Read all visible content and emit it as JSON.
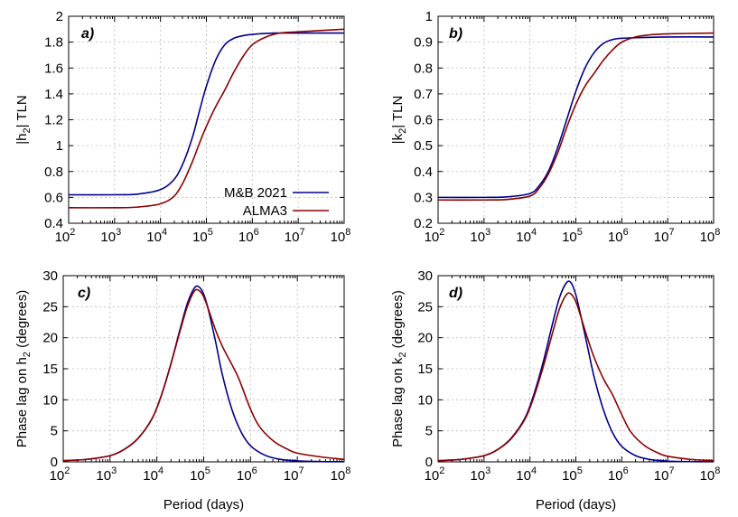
{
  "colors": {
    "mb2021": "#00008b",
    "alma3": "#8b0000"
  },
  "legend": {
    "mb2021": "M&B 2021",
    "alma3": "ALMA3"
  },
  "xlabel": "Period (days)",
  "chart_data": [
    {
      "type": "line",
      "panel": "a)",
      "ylabel_prefix": "|h",
      "ylabel_sub": "2",
      "ylabel_suffix": "| TLN",
      "xlim": [
        100,
        100000000
      ],
      "xscale": "log",
      "ylim": [
        0.4,
        2
      ],
      "xticks": [
        "2",
        "3",
        "4",
        "5",
        "6",
        "7",
        "8"
      ],
      "yticks": [
        "0.4",
        "0.6",
        "0.8",
        "1",
        "1.2",
        "1.4",
        "1.6",
        "1.8",
        "2"
      ],
      "series": [
        {
          "name": "M&B 2021",
          "log10_period": [
            2,
            3,
            3.5,
            4,
            4.3,
            4.5,
            4.7,
            4.85,
            5,
            5.2,
            5.4,
            5.6,
            5.8,
            6,
            6.5,
            7,
            8
          ],
          "values": [
            0.62,
            0.62,
            0.625,
            0.66,
            0.74,
            0.87,
            1.07,
            1.27,
            1.46,
            1.66,
            1.78,
            1.83,
            1.85,
            1.86,
            1.87,
            1.87,
            1.87
          ]
        },
        {
          "name": "ALMA3",
          "log10_period": [
            2,
            3,
            3.5,
            4,
            4.3,
            4.5,
            4.7,
            4.85,
            5,
            5.2,
            5.4,
            5.6,
            5.8,
            6,
            6.3,
            6.6,
            7,
            8
          ],
          "values": [
            0.52,
            0.52,
            0.525,
            0.55,
            0.61,
            0.72,
            0.88,
            1.02,
            1.15,
            1.3,
            1.43,
            1.57,
            1.69,
            1.78,
            1.84,
            1.87,
            1.88,
            1.9
          ]
        }
      ]
    },
    {
      "type": "line",
      "panel": "b)",
      "ylabel_prefix": "|k",
      "ylabel_sub": "2",
      "ylabel_suffix": "| TLN",
      "xlim": [
        100,
        100000000
      ],
      "xscale": "log",
      "ylim": [
        0.2,
        1
      ],
      "xticks": [
        "2",
        "3",
        "4",
        "5",
        "6",
        "7",
        "8"
      ],
      "yticks": [
        "0.2",
        "0.3",
        "0.4",
        "0.5",
        "0.6",
        "0.7",
        "0.8",
        "0.9",
        "1"
      ],
      "series": [
        {
          "name": "M&B 2021",
          "log10_period": [
            2,
            3,
            3.5,
            4,
            4.2,
            4.4,
            4.6,
            4.8,
            5,
            5.2,
            5.4,
            5.6,
            5.8,
            6,
            6.5,
            7,
            8
          ],
          "values": [
            0.3,
            0.3,
            0.302,
            0.315,
            0.345,
            0.4,
            0.49,
            0.6,
            0.71,
            0.8,
            0.86,
            0.895,
            0.91,
            0.915,
            0.918,
            0.92,
            0.92
          ]
        },
        {
          "name": "ALMA3",
          "log10_period": [
            2,
            3,
            3.5,
            4,
            4.2,
            4.4,
            4.6,
            4.8,
            5,
            5.2,
            5.4,
            5.6,
            5.8,
            6,
            6.3,
            6.6,
            7,
            8
          ],
          "values": [
            0.29,
            0.29,
            0.292,
            0.305,
            0.335,
            0.39,
            0.47,
            0.57,
            0.66,
            0.73,
            0.78,
            0.83,
            0.87,
            0.9,
            0.92,
            0.928,
            0.932,
            0.935
          ]
        }
      ]
    },
    {
      "type": "line",
      "panel": "c)",
      "ylabel_prefix": "Phase lag on h",
      "ylabel_sub": "2",
      "ylabel_suffix": " (degrees)",
      "xlim": [
        100,
        100000000
      ],
      "xscale": "log",
      "ylim": [
        0,
        30
      ],
      "xticks": [
        "2",
        "3",
        "4",
        "5",
        "6",
        "7",
        "8"
      ],
      "yticks": [
        "0",
        "5",
        "10",
        "15",
        "20",
        "25",
        "30"
      ],
      "series": [
        {
          "name": "M&B 2021",
          "log10_period": [
            2,
            2.5,
            3,
            3.3,
            3.6,
            3.9,
            4.1,
            4.3,
            4.5,
            4.65,
            4.8,
            4.9,
            5,
            5.1,
            5.25,
            5.4,
            5.6,
            5.8,
            6,
            6.3,
            6.6,
            7,
            7.5,
            8
          ],
          "values": [
            0.2,
            0.4,
            1.0,
            2.0,
            3.8,
            7.0,
            10.8,
            15.8,
            21.5,
            25.5,
            28.0,
            28.2,
            27.0,
            24.5,
            19.5,
            14.0,
            8.5,
            4.8,
            2.6,
            1.1,
            0.45,
            0.15,
            0.05,
            0.02
          ]
        },
        {
          "name": "ALMA3",
          "log10_period": [
            2,
            2.5,
            3,
            3.3,
            3.6,
            3.9,
            4.1,
            4.3,
            4.5,
            4.65,
            4.8,
            4.9,
            5,
            5.1,
            5.25,
            5.4,
            5.6,
            5.75,
            6,
            6.2,
            6.5,
            6.8,
            7,
            7.5,
            8
          ],
          "values": [
            0.2,
            0.4,
            1.0,
            2.0,
            3.8,
            7.0,
            10.8,
            15.8,
            21.2,
            25.0,
            27.5,
            27.6,
            26.6,
            24.6,
            21.3,
            18.6,
            15.7,
            13.4,
            8.5,
            5.6,
            3.3,
            2.0,
            1.4,
            0.8,
            0.4
          ]
        }
      ]
    },
    {
      "type": "line",
      "panel": "d)",
      "ylabel_prefix": "Phase lag on k",
      "ylabel_sub": "2",
      "ylabel_suffix": " (degrees)",
      "xlim": [
        100,
        100000000
      ],
      "xscale": "log",
      "ylim": [
        0,
        30
      ],
      "xticks": [
        "2",
        "3",
        "4",
        "5",
        "6",
        "7",
        "8"
      ],
      "yticks": [
        "0",
        "5",
        "10",
        "15",
        "20",
        "25",
        "30"
      ],
      "series": [
        {
          "name": "M&B 2021",
          "log10_period": [
            2,
            2.5,
            3,
            3.3,
            3.6,
            3.9,
            4.1,
            4.3,
            4.5,
            4.65,
            4.8,
            4.9,
            5,
            5.1,
            5.25,
            5.4,
            5.6,
            5.8,
            6,
            6.3,
            6.6,
            7,
            7.5,
            8
          ],
          "values": [
            0.2,
            0.4,
            1.0,
            2.0,
            3.9,
            7.2,
            11.2,
            16.4,
            22.5,
            26.6,
            28.9,
            28.8,
            26.9,
            23.8,
            18.7,
            13.6,
            8.4,
            4.7,
            2.5,
            1.0,
            0.4,
            0.12,
            0.04,
            0.02
          ]
        },
        {
          "name": "ALMA3",
          "log10_period": [
            2,
            2.5,
            3,
            3.3,
            3.6,
            3.9,
            4.1,
            4.3,
            4.5,
            4.65,
            4.8,
            4.9,
            5,
            5.1,
            5.25,
            5.4,
            5.6,
            5.8,
            6,
            6.2,
            6.5,
            6.8,
            7,
            7.5,
            8
          ],
          "values": [
            0.2,
            0.4,
            1.0,
            2.0,
            3.8,
            7.0,
            10.8,
            15.6,
            21.0,
            24.8,
            27.0,
            27.0,
            25.8,
            23.6,
            20.0,
            16.8,
            13.4,
            10.8,
            7.6,
            4.8,
            2.6,
            1.4,
            0.9,
            0.4,
            0.2
          ]
        }
      ]
    }
  ]
}
